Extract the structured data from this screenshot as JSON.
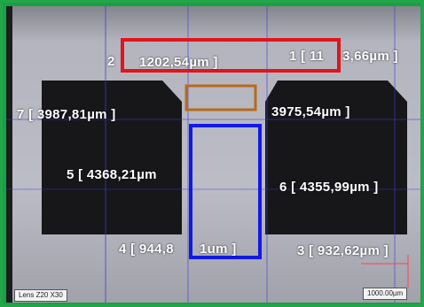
{
  "measurements": {
    "m1": "1 [ 11",
    "m1_tail": "3,66µm ]",
    "m2": "2",
    "m2_value": "1202,54µm ]",
    "m3": "3 [ 932,62µm ]",
    "m4": "4 [ 944,8",
    "m4_tail": "1um ]",
    "m5": "5 [ 4368,21µm",
    "m6": "6 [ 4355,99µm ]",
    "m7": "7 [ 3987,81µm ]",
    "m8": "3975,54µm ]"
  },
  "lens_label": "Lens Z20 X30",
  "scale_label": "1000.00µm",
  "colors": {
    "frame": "#23a64a",
    "highlight_red": "#e0151b",
    "highlight_orange": "#b96a1a",
    "highlight_blue": "#1219e6",
    "guide_blue": "#3a3ad0"
  }
}
